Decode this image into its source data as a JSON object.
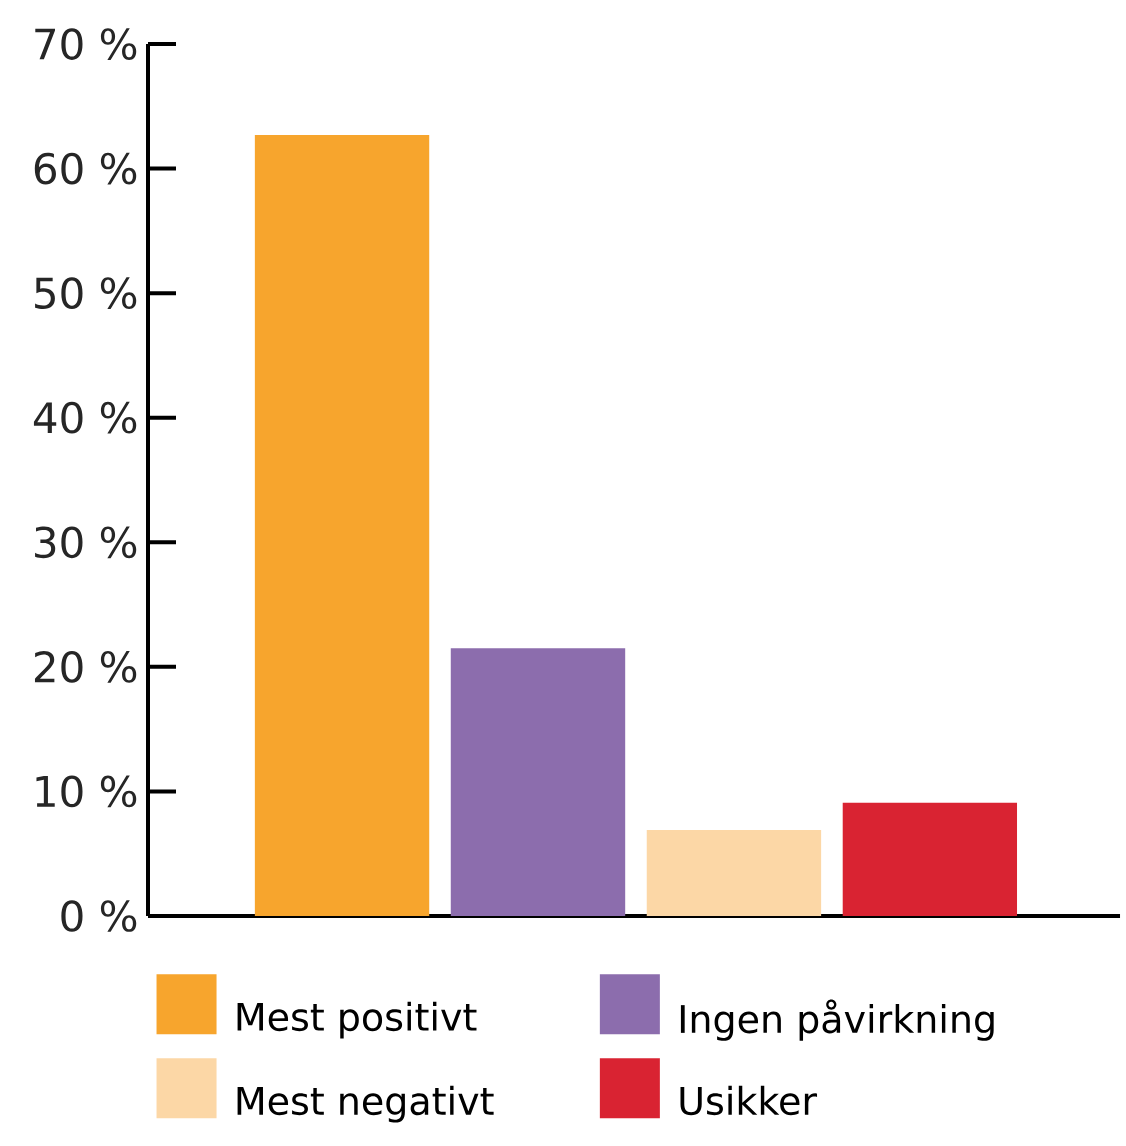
{
  "chart_data": {
    "type": "bar",
    "categories": [
      null,
      null,
      null,
      null
    ],
    "series": [
      {
        "name": "Mest positivt",
        "color": "#f7a52d",
        "values": [
          62.7,
          null,
          null,
          null
        ]
      },
      {
        "name": "Ingen påvirkning",
        "color": "#8c6dad",
        "values": [
          null,
          21.5,
          null,
          null
        ]
      },
      {
        "name": "Mest negativt",
        "color": "#fcd7a6",
        "values": [
          null,
          null,
          6.9,
          null
        ]
      },
      {
        "name": "Usikker",
        "color": "#d92332",
        "values": [
          null,
          null,
          null,
          9.1
        ]
      }
    ],
    "ylim": [
      0,
      70
    ],
    "yticks": [
      {
        "value": 0,
        "label": "0 %"
      },
      {
        "value": 10,
        "label": "10 %"
      },
      {
        "value": 20,
        "label": "20 %"
      },
      {
        "value": 30,
        "label": "30 %"
      },
      {
        "value": 40,
        "label": "40 %"
      },
      {
        "value": 50,
        "label": "50 %"
      },
      {
        "value": 60,
        "label": "60 %"
      },
      {
        "value": 70,
        "label": "70 %"
      }
    ],
    "legend": "bottom",
    "grid": false
  }
}
